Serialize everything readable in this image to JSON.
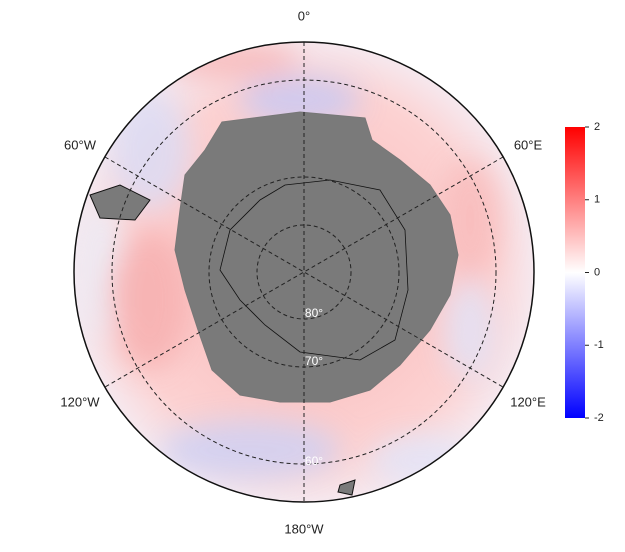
{
  "map": {
    "longitude_labels": [
      "0°",
      "60°E",
      "120°E",
      "180°W",
      "120°W",
      "60°W"
    ],
    "latitude_labels": [
      "80°",
      "70°",
      "60°"
    ],
    "colorbar": {
      "lim": [
        -2,
        2
      ],
      "ticks": [
        -2,
        -1,
        0,
        1,
        2
      ]
    }
  }
}
